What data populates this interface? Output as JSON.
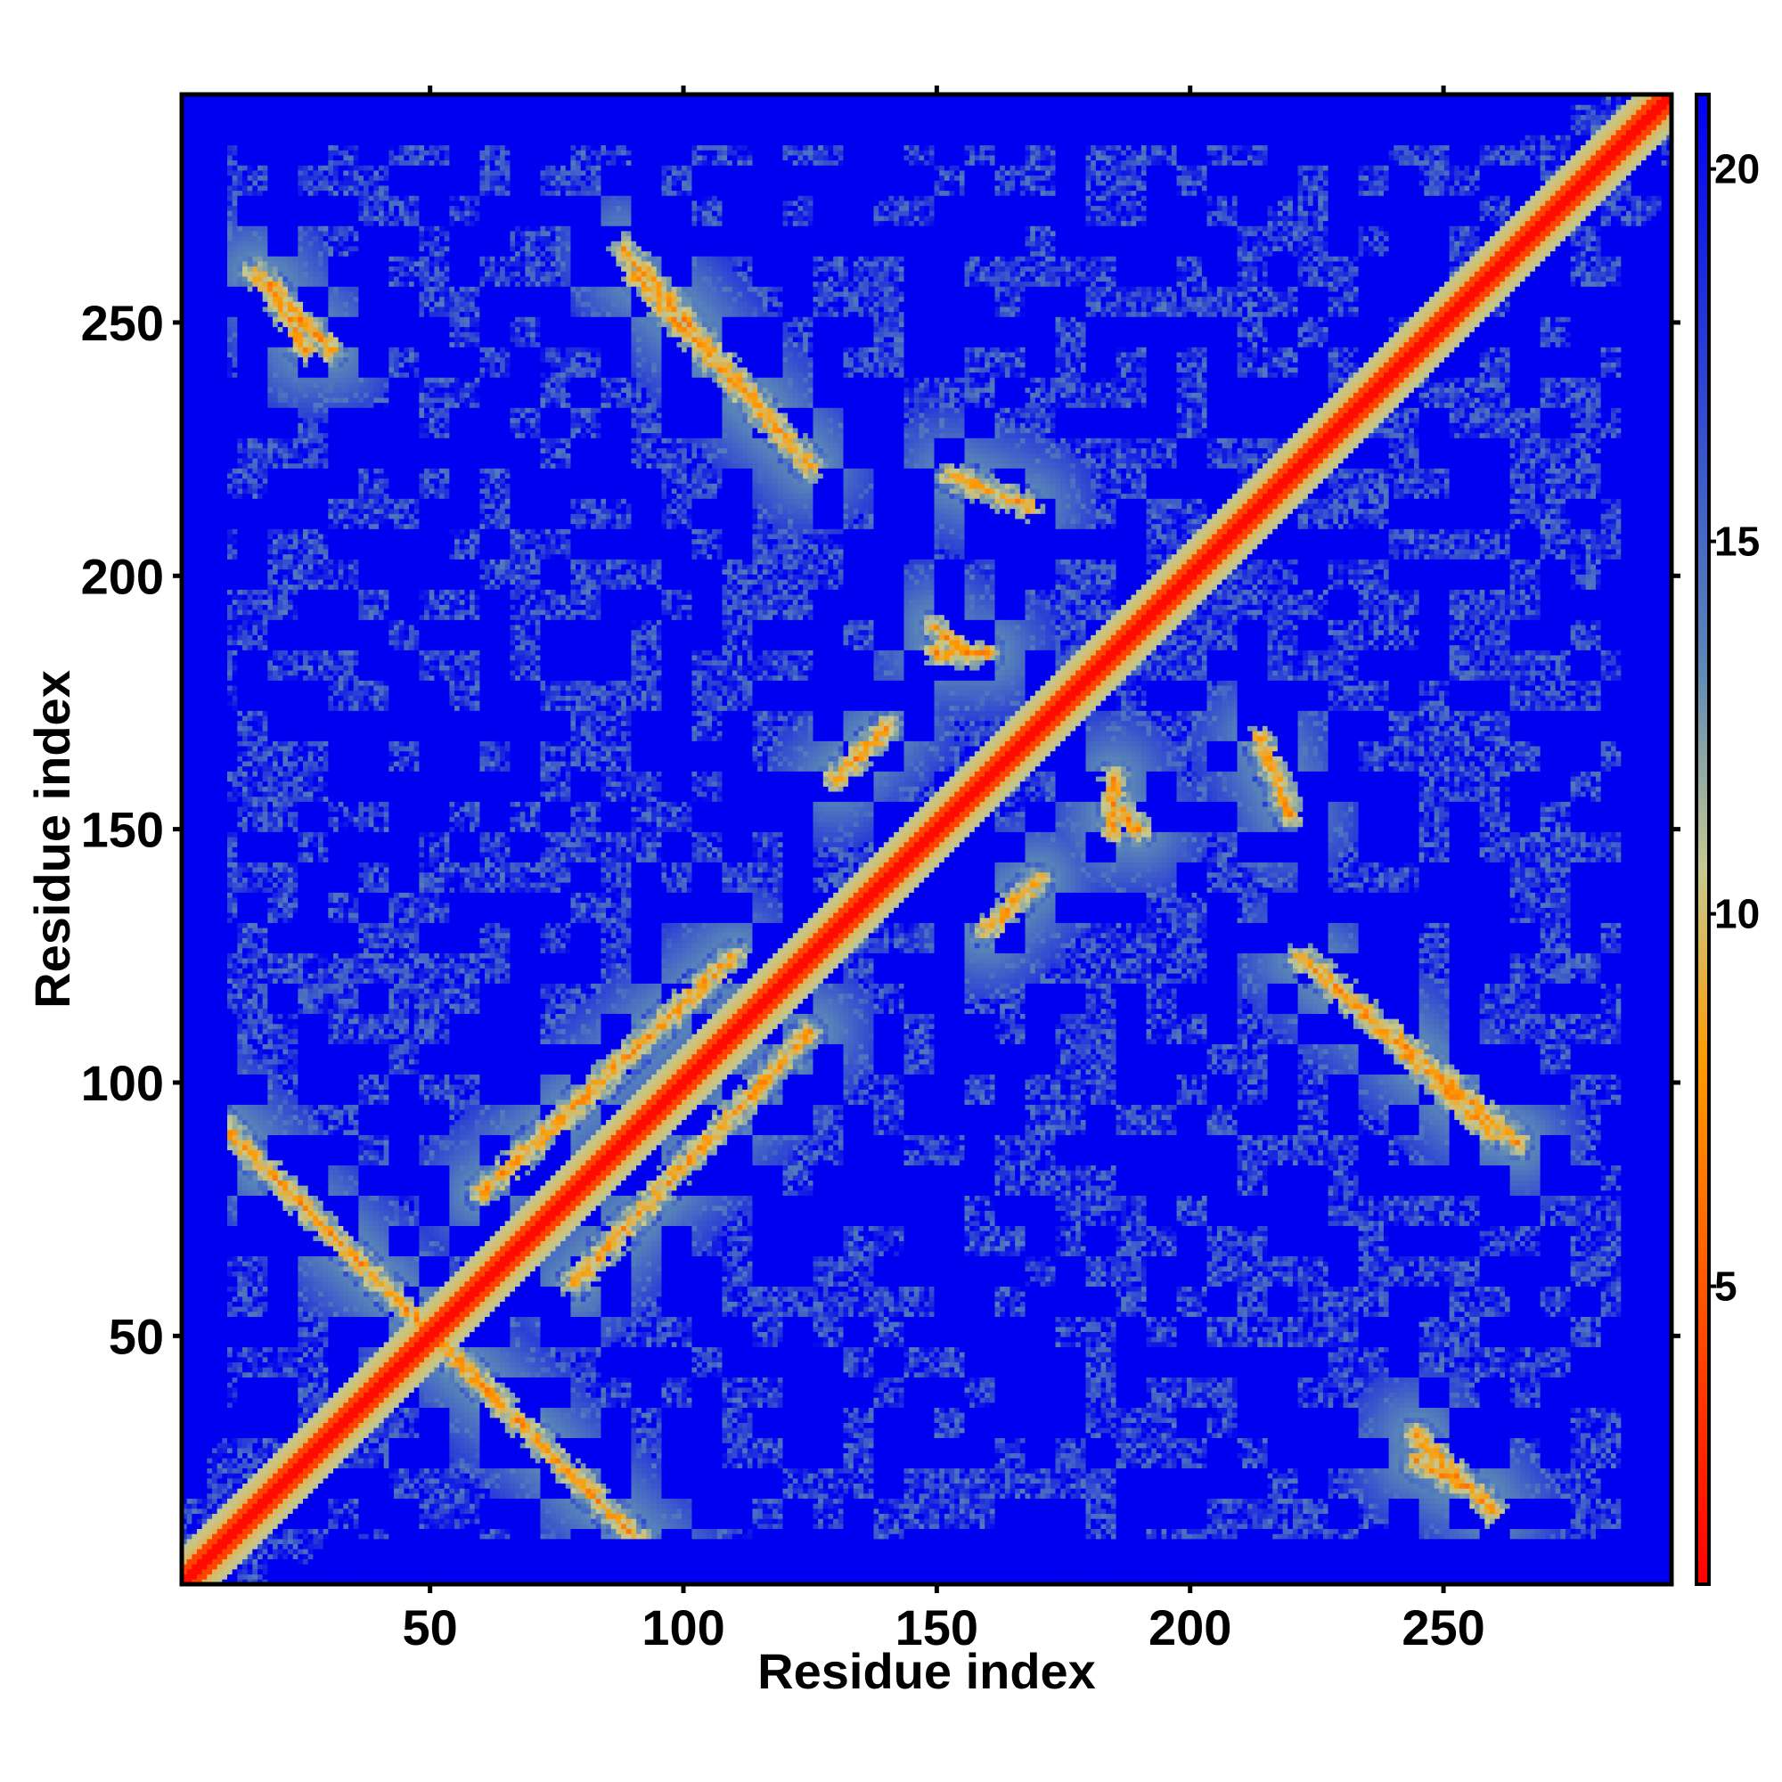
{
  "chart_data": {
    "type": "heatmap",
    "title": "",
    "xlabel": "Residue index",
    "ylabel": "Residue index",
    "xlim": [
      1,
      295
    ],
    "ylim": [
      1,
      295
    ],
    "x_ticks": [
      50,
      100,
      150,
      200,
      250
    ],
    "y_ticks": [
      50,
      100,
      150,
      200,
      250
    ],
    "x_tick_labels": [
      "50",
      "100",
      "150",
      "200",
      "250"
    ],
    "y_tick_labels": [
      "50",
      "100",
      "150",
      "200",
      "250"
    ],
    "grid": false,
    "colorbar": {
      "range": [
        1,
        21
      ],
      "ticks": [
        5,
        10,
        15,
        20
      ],
      "tick_labels": [
        "5",
        "10",
        "15",
        "20"
      ],
      "colors": [
        "#ff0000",
        "#ff9a00",
        "#c6c990",
        "#5a86b8",
        "#0000f0"
      ],
      "stops": [
        0,
        0.35,
        0.48,
        0.62,
        1
      ],
      "saturation_color": "#0000f0",
      "saturation_threshold": 21
    },
    "matrix_description": {
      "symmetric": true,
      "values_estimated": "pairwise residue distance; ~1 on diagonal, saturating above ~20",
      "contact_bands": [
        {
          "i": [
            50,
            95
          ],
          "j": [
            50,
            5
          ],
          "kind": "antiparallel"
        },
        {
          "i": [
            15,
            30
          ],
          "j": [
            260,
            245
          ],
          "kind": "antiparallel"
        },
        {
          "i": [
            90,
            125
          ],
          "j": [
            260,
            222
          ],
          "kind": "antiparallel"
        },
        {
          "i": [
            110,
            60
          ],
          "j": [
            125,
            78
          ],
          "kind": "antiparallel"
        },
        {
          "i": [
            153,
            168
          ],
          "j": [
            220,
            214
          ],
          "kind": "patch"
        },
        {
          "i": [
            150,
            160
          ],
          "j": [
            185,
            185
          ],
          "kind": "patch"
        },
        {
          "i": [
            185,
            190
          ],
          "j": [
            155,
            150
          ],
          "kind": "patch"
        },
        {
          "i": [
            160,
            170
          ],
          "j": [
            130,
            140
          ],
          "kind": "patch"
        },
        {
          "i": [
            245,
            258
          ],
          "j": [
            25,
            18
          ],
          "kind": "antiparallel"
        },
        {
          "i": [
            222,
            265
          ],
          "j": [
            125,
            88
          ],
          "kind": "antiparallel"
        }
      ]
    }
  }
}
